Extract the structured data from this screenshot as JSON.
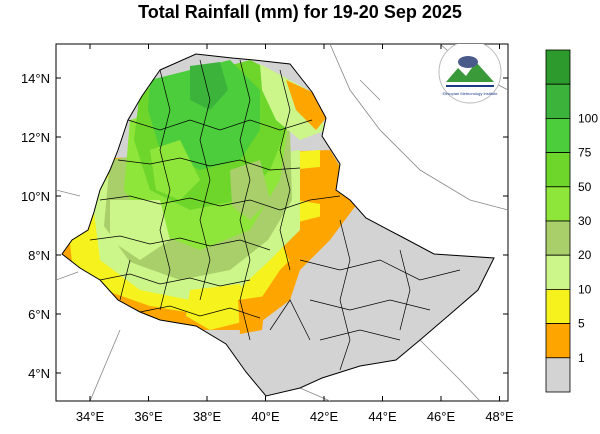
{
  "title": "Total Rainfall (mm) for 19-20 Sep 2025",
  "map": {
    "lon_ticks": [
      "34°E",
      "36°E",
      "38°E",
      "40°E",
      "42°E",
      "44°E",
      "46°E",
      "48°E"
    ],
    "lat_ticks": [
      "14°N",
      "12°N",
      "10°N",
      "8°N",
      "6°N",
      "4°N"
    ]
  },
  "legend": {
    "levels": [
      {
        "label": "",
        "color": "#2c9a2c"
      },
      {
        "label": "100",
        "color": "#3cb43c"
      },
      {
        "label": "75",
        "color": "#4ccd3c"
      },
      {
        "label": "50",
        "color": "#6ed62a"
      },
      {
        "label": "30",
        "color": "#8fe63a"
      },
      {
        "label": "20",
        "color": "#a8cf6a"
      },
      {
        "label": "10",
        "color": "#ccf58a"
      },
      {
        "label": "5",
        "color": "#f5f21e"
      },
      {
        "label": "1",
        "color": "#ffa500"
      },
      {
        "label": "",
        "color": "#d3d3d3"
      }
    ]
  },
  "logo": {
    "text": "Ethiopian Meteorology Institute"
  }
}
